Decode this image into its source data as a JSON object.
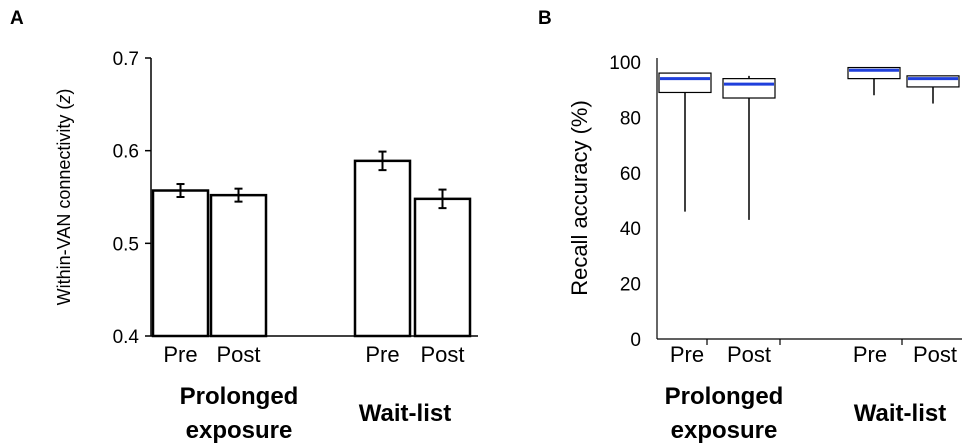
{
  "chart_data": [
    {
      "panel": "A",
      "type": "bar",
      "ylabel_prefix": "Within-VAN connectivity (",
      "ylabel_var": "z",
      "ylabel_suffix": ")",
      "ylim": [
        0.4,
        0.7
      ],
      "yticks": [
        "0.4",
        "0.5",
        "0.6",
        "0.7"
      ],
      "ytick_values": [
        0.4,
        0.5,
        0.6,
        0.7
      ],
      "groups": [
        {
          "line1": "Prolonged",
          "line2": "exposure"
        },
        {
          "line1": "Wait-list",
          "line2": ""
        }
      ],
      "bars": [
        {
          "label": "Pre",
          "group": 0,
          "value": 0.557,
          "err": 0.007
        },
        {
          "label": "Post",
          "group": 0,
          "value": 0.552,
          "err": 0.007
        },
        {
          "label": "Pre",
          "group": 1,
          "value": 0.589,
          "err": 0.01
        },
        {
          "label": "Post",
          "group": 1,
          "value": 0.548,
          "err": 0.01
        }
      ],
      "colors": {
        "bar_fill": "#ffffff",
        "bar_stroke": "#000000"
      }
    },
    {
      "panel": "B",
      "type": "box",
      "ylabel": "Recall accuracy (%)",
      "ylim": [
        0,
        100
      ],
      "yticks": [
        "0",
        "20",
        "40",
        "60",
        "80",
        "100"
      ],
      "ytick_values": [
        0,
        20,
        40,
        60,
        80,
        100
      ],
      "groups": [
        {
          "line1": "Prolonged",
          "line2": "exposure"
        },
        {
          "line1": "Wait-list",
          "line2": ""
        }
      ],
      "boxes": [
        {
          "label": "Pre",
          "group": 0,
          "min": 46,
          "q1": 89,
          "median": 94,
          "q3": 96,
          "max": 96
        },
        {
          "label": "Post",
          "group": 0,
          "min": 43,
          "q1": 87,
          "median": 92,
          "q3": 94,
          "max": 95
        },
        {
          "label": "Pre",
          "group": 1,
          "min": 88,
          "q1": 94,
          "median": 97,
          "q3": 98,
          "max": 98
        },
        {
          "label": "Post",
          "group": 1,
          "min": 85,
          "q1": 91,
          "median": 94,
          "q3": 95,
          "max": 95
        }
      ],
      "colors": {
        "median": "#1f3fdc",
        "box_stroke": "#000000"
      }
    }
  ]
}
